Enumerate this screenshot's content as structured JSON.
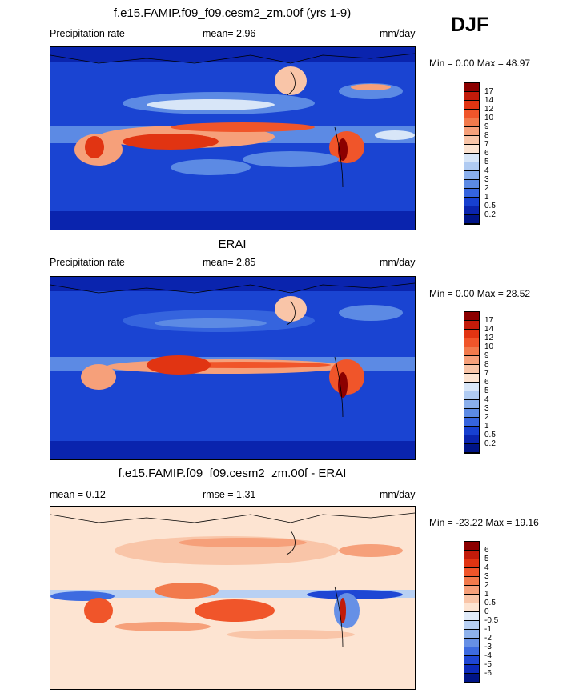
{
  "season_label": "DJF",
  "panels": [
    {
      "title": "f.e15.FAMIP.f09_f09.cesm2_zm.00f (yrs 1-9)",
      "left_label": "Precipitation rate",
      "center_label": "mean=   2.96",
      "right_label": "mm/day",
      "minmax_label": "Min =   0.00 Max =  48.97",
      "colorbar_levels": [
        "17",
        "14",
        "12",
        "10",
        "9",
        "8",
        "7",
        "6",
        "5",
        "4",
        "3",
        "2",
        "1",
        "0.5",
        "0.2"
      ],
      "colorbar_colors": [
        "#8b0000",
        "#c21b0a",
        "#e13412",
        "#f0552a",
        "#f27a4c",
        "#f6a07a",
        "#f9c5a8",
        "#fde4d2",
        "#d8e6f8",
        "#b0cbf2",
        "#8aafec",
        "#5c8ae4",
        "#3564de",
        "#1740d0",
        "#0a24ae",
        "#001487"
      ]
    },
    {
      "title": "ERAI",
      "left_label": "Precipitation rate",
      "center_label": "mean=   2.85",
      "right_label": "mm/day",
      "minmax_label": "Min =   0.00 Max =  28.52",
      "colorbar_levels": [
        "17",
        "14",
        "12",
        "10",
        "9",
        "8",
        "7",
        "6",
        "5",
        "4",
        "3",
        "2",
        "1",
        "0.5",
        "0.2"
      ],
      "colorbar_colors": [
        "#8b0000",
        "#c21b0a",
        "#e13412",
        "#f0552a",
        "#f27a4c",
        "#f6a07a",
        "#f9c5a8",
        "#fde4d2",
        "#d8e6f8",
        "#b0cbf2",
        "#8aafec",
        "#5c8ae4",
        "#3564de",
        "#1740d0",
        "#0a24ae",
        "#001487"
      ]
    },
    {
      "title": "f.e15.FAMIP.f09_f09.cesm2_zm.00f - ERAI",
      "left_label": "mean =   0.12",
      "center_label": "rmse =   1.31",
      "right_label": "mm/day",
      "minmax_label": "Min = -23.22 Max =  19.16",
      "colorbar_levels": [
        "6",
        "5",
        "4",
        "3",
        "2",
        "1",
        "0.5",
        "0",
        "-0.5",
        "-1",
        "-2",
        "-3",
        "-4",
        "-5",
        "-6"
      ],
      "colorbar_colors": [
        "#8b0000",
        "#c21b0a",
        "#e13412",
        "#f0552a",
        "#f27a4c",
        "#f6a07a",
        "#f9c5a8",
        "#fde4d2",
        "#e1ebf9",
        "#b8d0f3",
        "#8eb2ec",
        "#6690e6",
        "#3d6be0",
        "#1e46d4",
        "#0c2aba",
        "#001487"
      ]
    }
  ],
  "chart_data": {
    "type": "heatmap",
    "season": "DJF",
    "panels": [
      {
        "title": "f.e15.FAMIP.f09_f09.cesm2_zm.00f (yrs 1-9)",
        "variable": "Precipitation rate",
        "units": "mm/day",
        "mean": 2.96,
        "min": 0.0,
        "max": 48.97,
        "contour_levels": [
          0.2,
          0.5,
          1,
          2,
          3,
          4,
          5,
          6,
          7,
          8,
          9,
          10,
          12,
          14,
          17
        ]
      },
      {
        "title": "ERAI",
        "variable": "Precipitation rate",
        "units": "mm/day",
        "mean": 2.85,
        "min": 0.0,
        "max": 28.52,
        "contour_levels": [
          0.2,
          0.5,
          1,
          2,
          3,
          4,
          5,
          6,
          7,
          8,
          9,
          10,
          12,
          14,
          17
        ]
      },
      {
        "title": "f.e15.FAMIP.f09_f09.cesm2_zm.00f - ERAI",
        "units": "mm/day",
        "mean": 0.12,
        "rmse": 1.31,
        "min": -23.22,
        "max": 19.16,
        "contour_levels": [
          -6,
          -5,
          -4,
          -3,
          -2,
          -1,
          -0.5,
          0,
          0.5,
          1,
          2,
          3,
          4,
          5,
          6
        ]
      }
    ]
  }
}
